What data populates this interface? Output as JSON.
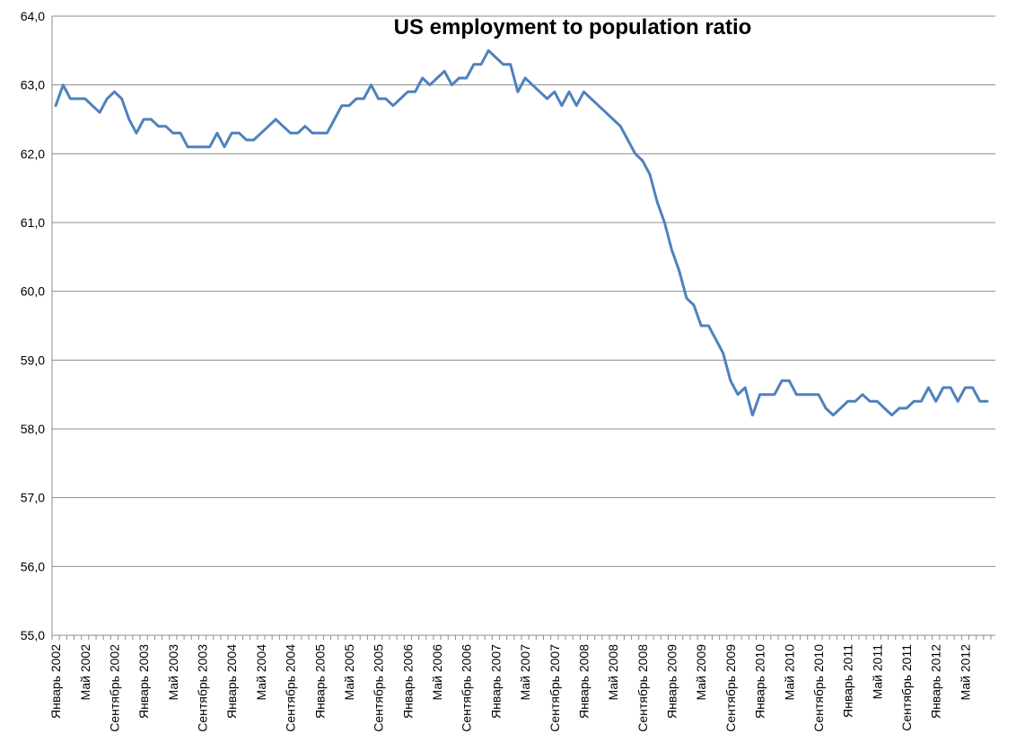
{
  "chart_data": {
    "type": "line",
    "title": "US employment to population ratio",
    "xlabel": "",
    "ylabel": "",
    "ylim": [
      55,
      64
    ],
    "yticks": [
      "55,0",
      "56,0",
      "57,0",
      "58,0",
      "59,0",
      "60,0",
      "61,0",
      "62,0",
      "63,0",
      "64,0"
    ],
    "grid": true,
    "legend": "none",
    "series_color": "#4f81bd",
    "x_tick_labels": [
      "Январь 2002",
      "Май 2002",
      "Сентябрь 2002",
      "Январь 2003",
      "Май 2003",
      "Сентябрь 2003",
      "Январь 2004",
      "Май 2004",
      "Сентябрь 2004",
      "Январь 2005",
      "Май 2005",
      "Сентябрь 2005",
      "Январь 2006",
      "Май 2006",
      "Сентябрь 2006",
      "Январь 2007",
      "Май 2007",
      "Сентябрь 2007",
      "Январь 2008",
      "Май 2008",
      "Сентябрь 2008",
      "Январь 2009",
      "Май 2009",
      "Сентябрь 2009",
      "Январь 2010",
      "Май 2010",
      "Сентябрь 2010",
      "Январь 2011",
      "Май 2011",
      "Сентябрь 2011",
      "Январь 2012",
      "Май 2012"
    ],
    "series": [
      {
        "values": [
          62.7,
          63.0,
          62.8,
          62.8,
          62.8,
          62.7,
          62.6,
          62.8,
          62.9,
          62.8,
          62.5,
          62.3,
          62.5,
          62.5,
          62.4,
          62.4,
          62.3,
          62.3,
          62.1,
          62.1,
          62.1,
          62.1,
          62.3,
          62.1,
          62.3,
          62.3,
          62.2,
          62.2,
          62.3,
          62.4,
          62.5,
          62.4,
          62.3,
          62.3,
          62.4,
          62.3,
          62.3,
          62.3,
          62.5,
          62.7,
          62.7,
          62.8,
          62.8,
          63.0,
          62.8,
          62.8,
          62.7,
          62.8,
          62.9,
          62.9,
          63.1,
          63.0,
          63.1,
          63.2,
          63.0,
          63.1,
          63.1,
          63.3,
          63.3,
          63.5,
          63.4,
          63.3,
          63.3,
          62.9,
          63.1,
          63.0,
          62.9,
          62.8,
          62.9,
          62.7,
          62.9,
          62.7,
          62.9,
          62.8,
          62.7,
          62.6,
          62.5,
          62.4,
          62.2,
          62.0,
          61.9,
          61.7,
          61.3,
          61.0,
          60.6,
          60.3,
          59.9,
          59.8,
          59.5,
          59.5,
          59.3,
          59.1,
          58.7,
          58.5,
          58.6,
          58.2,
          58.5,
          58.5,
          58.5,
          58.7,
          58.7,
          58.5,
          58.5,
          58.5,
          58.5,
          58.3,
          58.2,
          58.3,
          58.4,
          58.4,
          58.5,
          58.4,
          58.4,
          58.3,
          58.2,
          58.3,
          58.3,
          58.4,
          58.4,
          58.6,
          58.4,
          58.6,
          58.6,
          58.4,
          58.6,
          58.6,
          58.4,
          58.4
        ]
      }
    ]
  }
}
